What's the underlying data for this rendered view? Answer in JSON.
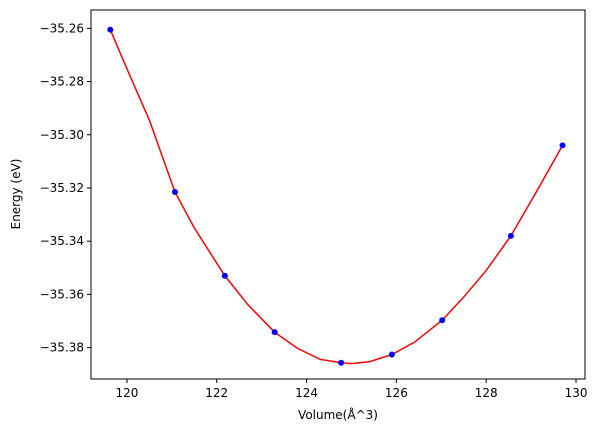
{
  "chart_data": {
    "type": "scatter",
    "title": "",
    "xlabel": "Volume(Å^3)",
    "ylabel": "Energy (eV)",
    "xlim": [
      119.2,
      130.2
    ],
    "ylim": [
      -35.3918,
      -35.2531
    ],
    "grid": false,
    "legend": "none",
    "x_ticks": [
      120,
      122,
      124,
      126,
      128,
      130
    ],
    "y_ticks": [
      -35.38,
      -35.36,
      -35.34,
      -35.32,
      -35.3,
      -35.28,
      -35.26
    ],
    "x_tick_labels": [
      "120",
      "122",
      "124",
      "126",
      "128",
      "130"
    ],
    "y_tick_labels": [
      "−35.38",
      "−35.36",
      "−35.34",
      "−35.32",
      "−35.30",
      "−35.28",
      "−35.26"
    ],
    "series": [
      {
        "kind": "points",
        "color": "#0000ff",
        "x": [
          119.63,
          121.07,
          122.18,
          123.29,
          124.77,
          125.9,
          127.02,
          128.55,
          129.7
        ],
        "y": [
          -35.2605,
          -35.3215,
          -35.353,
          -35.3742,
          -35.3857,
          -35.3826,
          -35.3697,
          -35.338,
          -35.304
        ]
      },
      {
        "kind": "fit-line",
        "color": "#ff0000",
        "x": [
          119.63,
          120.0,
          120.5,
          121.07,
          121.5,
          122.18,
          122.7,
          123.29,
          123.8,
          124.3,
          124.77,
          125.0,
          125.4,
          125.9,
          126.4,
          127.02,
          127.5,
          128.0,
          128.55,
          129.1,
          129.7
        ],
        "y": [
          -35.2605,
          -35.2752,
          -35.2945,
          -35.3215,
          -35.335,
          -35.353,
          -35.364,
          -35.3742,
          -35.3803,
          -35.3844,
          -35.3857,
          -35.386,
          -35.3853,
          -35.3826,
          -35.378,
          -35.3697,
          -35.361,
          -35.351,
          -35.338,
          -35.322,
          -35.304
        ]
      }
    ]
  }
}
